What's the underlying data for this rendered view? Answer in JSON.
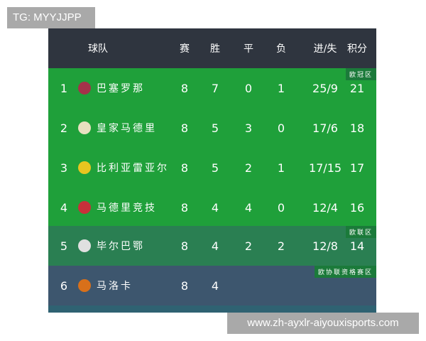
{
  "watermark_top": "TG: MYYJJPP",
  "watermark_bottom": "www.zh-ayxlr-aiyouxisports.com",
  "header": {
    "team": "球队",
    "played": "赛",
    "won": "胜",
    "drawn": "平",
    "lost": "负",
    "goals": "进/失",
    "points": "积分"
  },
  "rows": [
    {
      "rank": "1",
      "team": "巴塞罗那",
      "p": "8",
      "w": "7",
      "d": "0",
      "l": "1",
      "g": "25/9",
      "pts": "21",
      "zone": "欧冠区",
      "color": "#1fa03a",
      "logo": "#a5324a"
    },
    {
      "rank": "2",
      "team": "皇家马德里",
      "p": "8",
      "w": "5",
      "d": "3",
      "l": "0",
      "g": "17/6",
      "pts": "18",
      "zone": "",
      "color": "#1fa03a",
      "logo": "#e8e0c0"
    },
    {
      "rank": "3",
      "team": "比利亚雷亚尔",
      "p": "8",
      "w": "5",
      "d": "2",
      "l": "1",
      "g": "17/15",
      "pts": "17",
      "zone": "",
      "color": "#1fa03a",
      "logo": "#e8c520"
    },
    {
      "rank": "4",
      "team": "马德里竞技",
      "p": "8",
      "w": "4",
      "d": "4",
      "l": "0",
      "g": "12/4",
      "pts": "16",
      "zone": "",
      "color": "#1fa03a",
      "logo": "#c8303a"
    },
    {
      "rank": "5",
      "team": "毕尔巴鄂",
      "p": "8",
      "w": "4",
      "d": "2",
      "l": "2",
      "g": "12/8",
      "pts": "14",
      "zone": "欧联区",
      "color": "#2a7f52",
      "logo": "#e0e0e0"
    },
    {
      "rank": "6",
      "team": "马洛卡",
      "p": "8",
      "w": "4",
      "d": "",
      "l": "",
      "g": "",
      "pts": "",
      "zone": "欧协联资格赛区",
      "color": "#3d566e",
      "logo": "#d8701a"
    }
  ]
}
